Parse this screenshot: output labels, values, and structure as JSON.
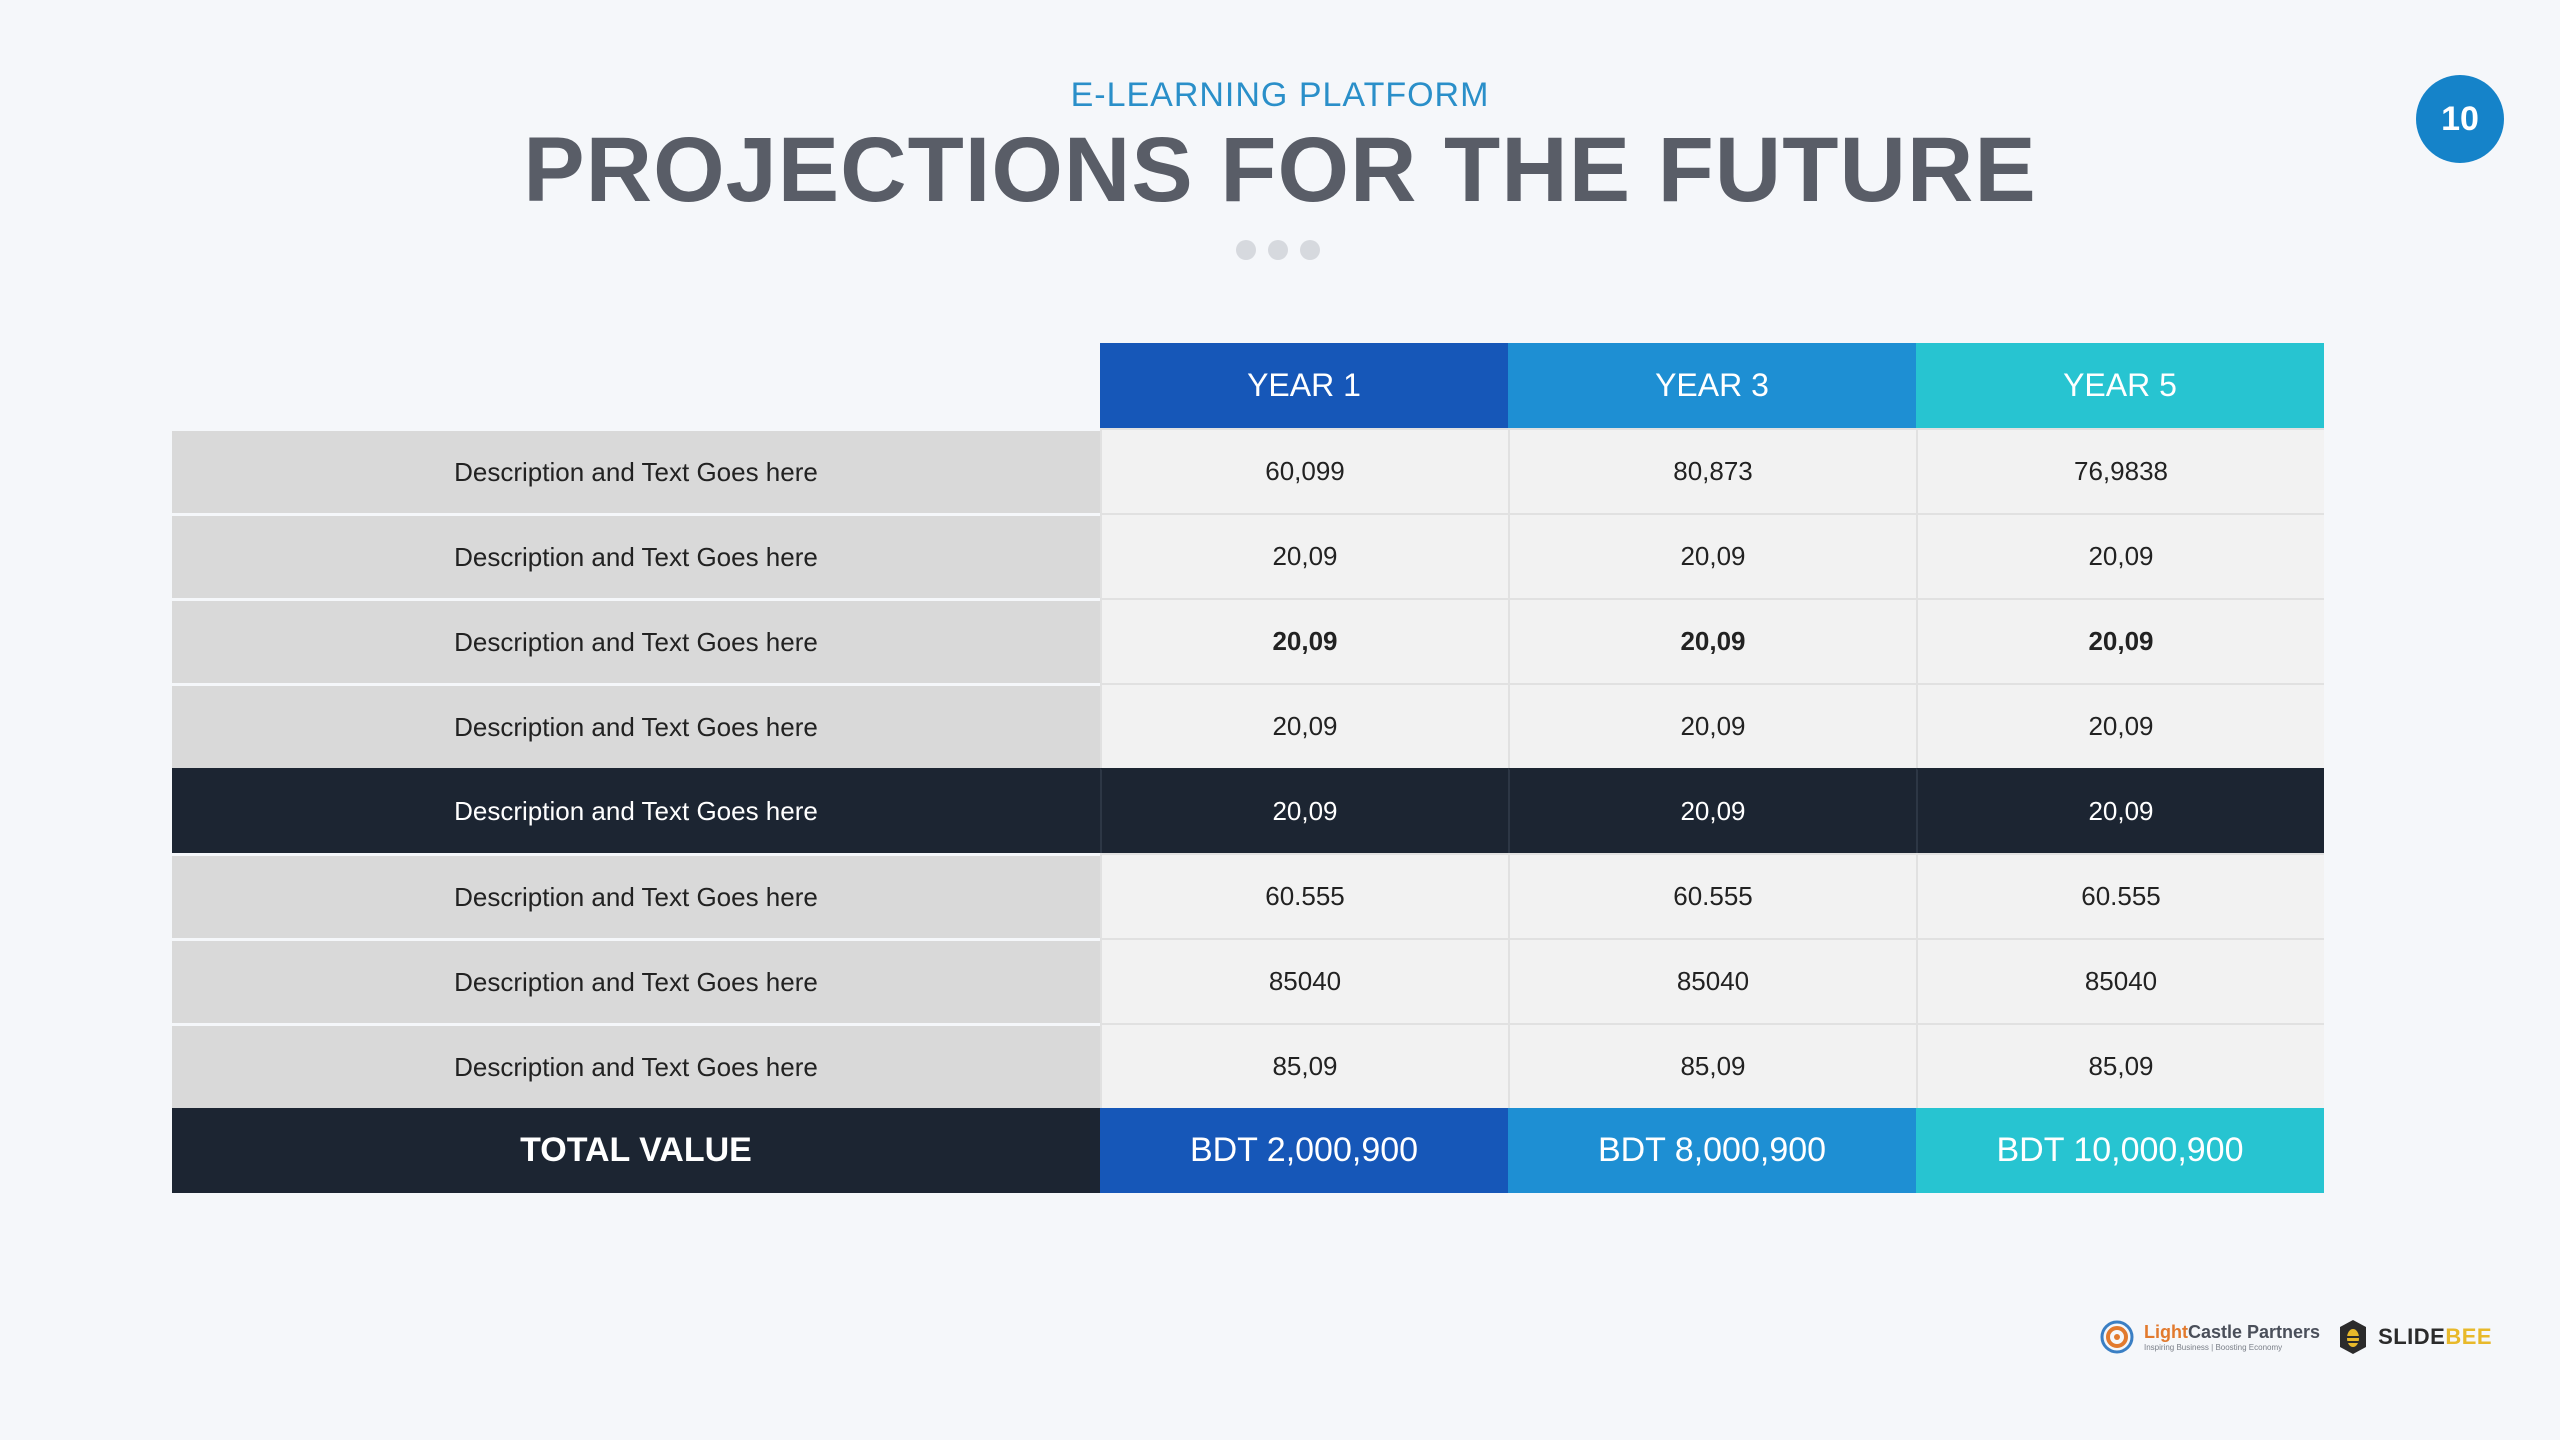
{
  "header": {
    "subtitle": "E-LEARNING PLATFORM",
    "title": "PROJECTIONS FOR THE FUTURE",
    "page_number": "10"
  },
  "table": {
    "columns": [
      "YEAR 1",
      "YEAR 3",
      "YEAR 5"
    ],
    "rows": [
      {
        "label": "Description and Text Goes here",
        "values": [
          "60,099",
          "80,873",
          "76,9838"
        ],
        "style": "normal"
      },
      {
        "label": "Description and Text Goes here",
        "values": [
          "20,09",
          "20,09",
          "20,09"
        ],
        "style": "normal"
      },
      {
        "label": "Description and Text Goes here",
        "values": [
          "20,09",
          "20,09",
          "20,09"
        ],
        "style": "bold"
      },
      {
        "label": "Description and Text Goes here",
        "values": [
          "20,09",
          "20,09",
          "20,09"
        ],
        "style": "normal"
      },
      {
        "label": "Description and Text Goes here",
        "values": [
          "20,09",
          "20,09",
          "20,09"
        ],
        "style": "highlight"
      },
      {
        "label": "Description and Text Goes here",
        "values": [
          "60.555",
          "60.555",
          "60.555"
        ],
        "style": "normal"
      },
      {
        "label": "Description and Text Goes here",
        "values": [
          "85040",
          "85040",
          "85040"
        ],
        "style": "normal"
      },
      {
        "label": "Description and Text Goes here",
        "values": [
          "85,09",
          "85,09",
          "85,09"
        ],
        "style": "normal"
      }
    ],
    "total": {
      "label": "TOTAL VALUE",
      "values": [
        "BDT 2,000,900",
        "BDT 8,000,900",
        "BDT 10,000,900"
      ]
    }
  },
  "footer": {
    "lightcastle": {
      "name_accent": "Light",
      "name_rest": "Castle Partners",
      "tagline": "Inspiring Business | Boosting Economy"
    },
    "slidebee": {
      "name_main": "SLIDE",
      "name_accent": "BEE"
    }
  },
  "colors": {
    "year1": "#1657b8",
    "year3": "#1e8fd3",
    "year5": "#27c4d1",
    "dark": "#1c2532",
    "subtitle": "#2a8fc9",
    "title": "#595d67",
    "badge": "#1583c9"
  }
}
